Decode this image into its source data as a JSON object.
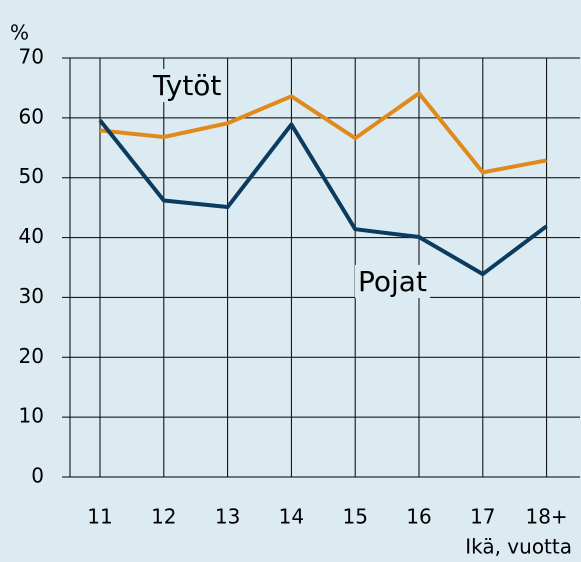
{
  "chart_data": {
    "type": "line",
    "y_unit": "%",
    "x_label": "Ikä, vuotta",
    "categories": [
      "11",
      "12",
      "13",
      "14",
      "15",
      "16",
      "17",
      "18+"
    ],
    "series": [
      {
        "name": "Tytöt",
        "color": "#e08a1e",
        "values": [
          57.9,
          56.8,
          59.1,
          63.6,
          56.6,
          64.1,
          50.9,
          52.9
        ]
      },
      {
        "name": "Pojat",
        "color": "#0b3b5e",
        "values": [
          59.6,
          46.2,
          45.1,
          58.9,
          41.4,
          40.1,
          33.9,
          41.9
        ]
      }
    ],
    "ylim": [
      0,
      70
    ],
    "yticks": [
      0,
      10,
      20,
      30,
      40,
      50,
      60,
      70
    ],
    "grid": true
  }
}
